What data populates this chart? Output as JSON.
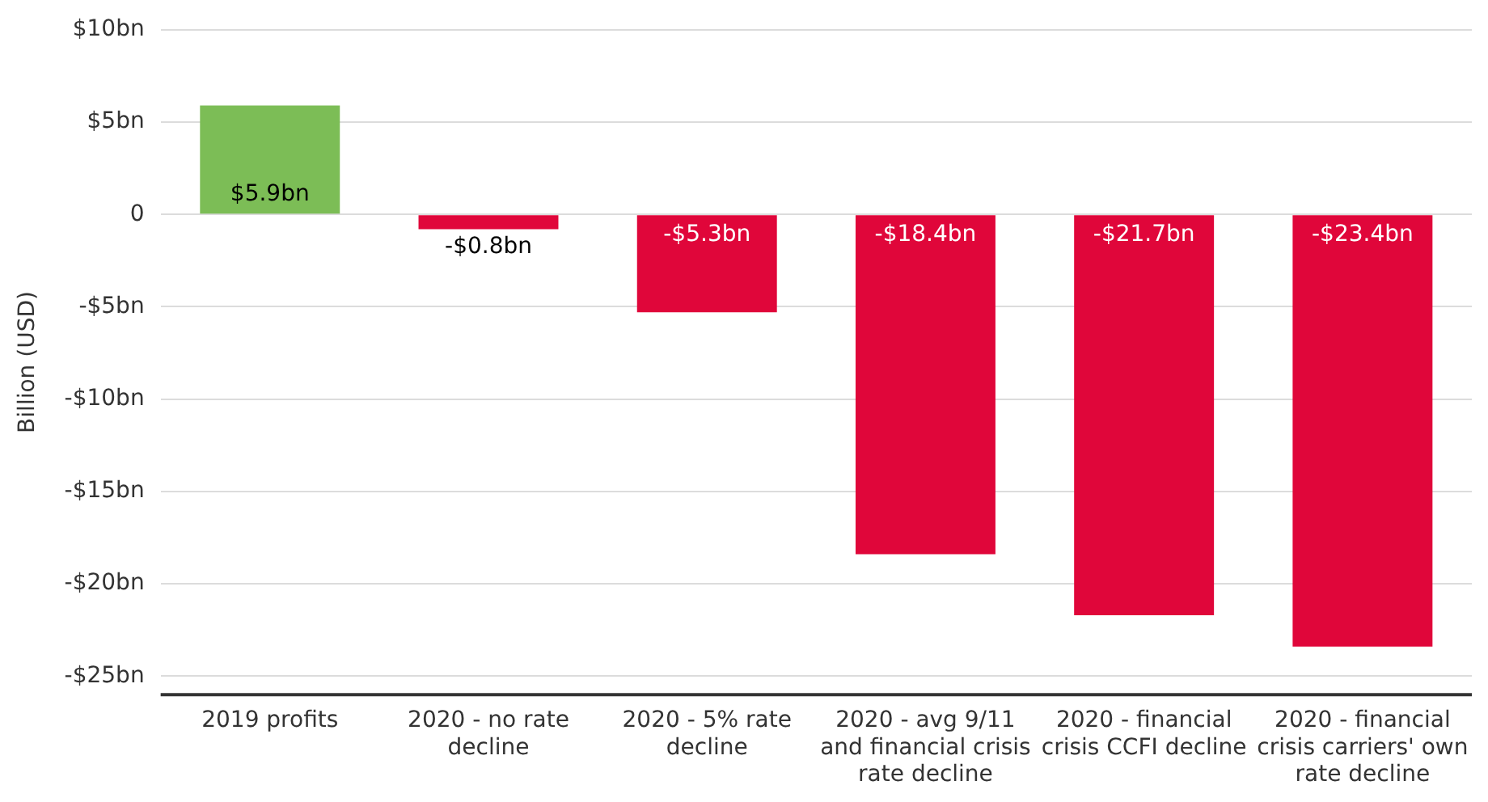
{
  "chart_data": {
    "type": "bar",
    "ylabel": "Billion (USD)",
    "categories": [
      "2019 profits",
      "2020 - no rate decline",
      "2020 - 5% rate decline",
      "2020 - avg 9/11 and financial crisis rate decline",
      "2020 - financial crisis CCFI decline",
      "2020 - financial crisis carriers' own rate decline"
    ],
    "values": [
      5.9,
      -0.8,
      -5.3,
      -18.4,
      -21.7,
      -23.4
    ],
    "colors": [
      "#7cbd56",
      "#e0063a",
      "#e0063a",
      "#e0063a",
      "#e0063a",
      "#e0063a"
    ],
    "value_labels": [
      "$5.9bn",
      "-$0.8bn",
      "-$5.3bn",
      "-$18.4bn",
      "-$21.7bn",
      "-$23.4bn"
    ],
    "ylim": [
      -26,
      10
    ],
    "yticks": [
      {
        "value": 10,
        "label": "$10bn"
      },
      {
        "value": 5,
        "label": "$5bn"
      },
      0,
      {
        "value": -5,
        "label": "-$5bn"
      },
      {
        "value": -10,
        "label": "-$10bn"
      },
      {
        "value": -15,
        "label": "-$15bn"
      },
      {
        "value": -20,
        "label": "-$20bn"
      },
      {
        "value": -25,
        "label": "-$25bn"
      }
    ],
    "grid": "y",
    "legend": false
  }
}
